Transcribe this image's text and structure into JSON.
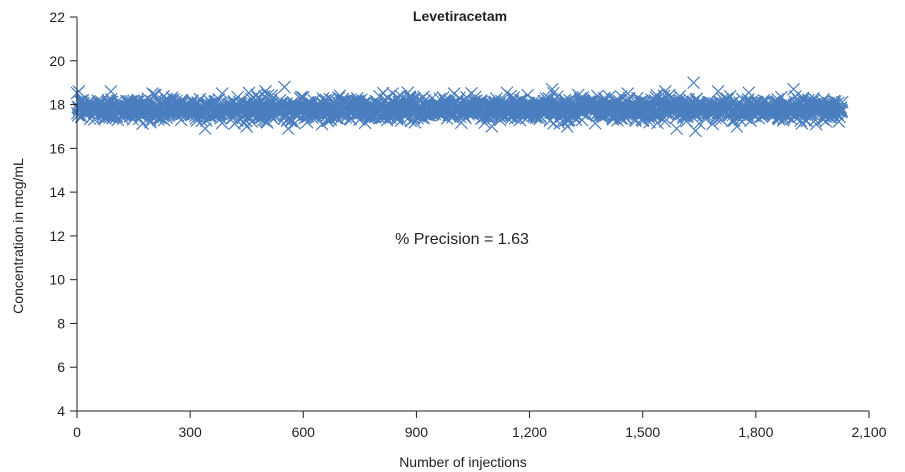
{
  "chart_data": {
    "type": "scatter",
    "title": "Levetiracetam",
    "xlabel": "Number of injections",
    "ylabel": "Concentration in mcg/mL",
    "xlim": [
      0,
      2100
    ],
    "ylim": [
      4,
      22
    ],
    "x_ticks": [
      "0",
      "300",
      "600",
      "900",
      "1,200",
      "1,500",
      "1,800",
      "2,100"
    ],
    "x_tick_values": [
      0,
      300,
      600,
      900,
      1200,
      1500,
      1800,
      2100
    ],
    "y_ticks": [
      "4",
      "6",
      "8",
      "10",
      "12",
      "14",
      "16",
      "18",
      "20",
      "22"
    ],
    "y_tick_values": [
      4,
      6,
      8,
      10,
      12,
      14,
      16,
      18,
      20,
      22
    ],
    "grid": false,
    "legend": "none",
    "marker": "x",
    "series_color": "#4a7ebf",
    "annotation": "% Precision = 1.63",
    "n_points": 2030,
    "mean": 17.8,
    "precision_pct": 1.63,
    "highlight_points": [
      {
        "x": 5,
        "y": 18.6
      },
      {
        "x": 90,
        "y": 18.6
      },
      {
        "x": 200,
        "y": 18.5
      },
      {
        "x": 340,
        "y": 16.9
      },
      {
        "x": 385,
        "y": 18.5
      },
      {
        "x": 450,
        "y": 17.0
      },
      {
        "x": 500,
        "y": 18.6
      },
      {
        "x": 550,
        "y": 18.8
      },
      {
        "x": 560,
        "y": 16.9
      },
      {
        "x": 650,
        "y": 17.1
      },
      {
        "x": 1000,
        "y": 18.5
      },
      {
        "x": 1100,
        "y": 17.0
      },
      {
        "x": 1260,
        "y": 18.7
      },
      {
        "x": 1300,
        "y": 17.0
      },
      {
        "x": 1460,
        "y": 18.5
      },
      {
        "x": 1560,
        "y": 18.6
      },
      {
        "x": 1590,
        "y": 16.9
      },
      {
        "x": 1635,
        "y": 19.0
      },
      {
        "x": 1640,
        "y": 16.8
      },
      {
        "x": 1700,
        "y": 18.6
      },
      {
        "x": 1750,
        "y": 17.0
      },
      {
        "x": 1900,
        "y": 18.7
      },
      {
        "x": 1960,
        "y": 17.1
      }
    ]
  }
}
